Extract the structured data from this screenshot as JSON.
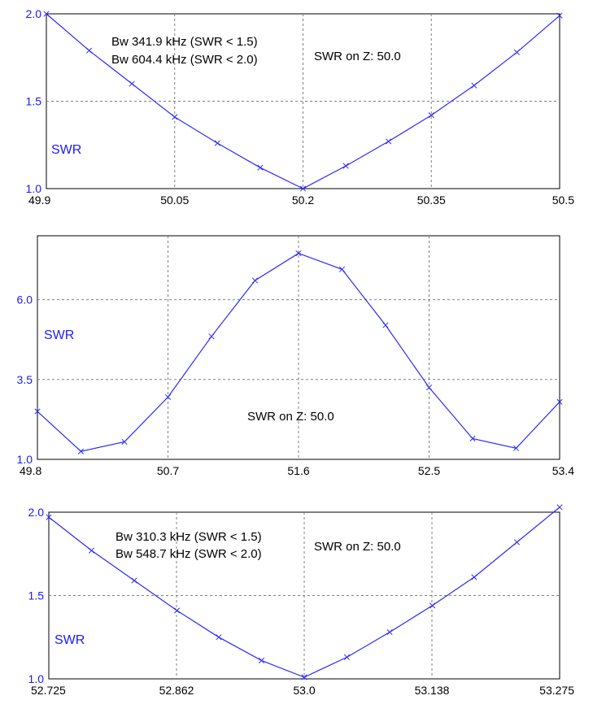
{
  "chart_data": [
    {
      "type": "line",
      "title": "",
      "xlabel": "",
      "ylabel": "",
      "xlim": [
        49.9,
        50.5
      ],
      "ylim": [
        1.0,
        2.0
      ],
      "x_ticks": [
        "49.9",
        "50.05",
        "50.2",
        "50.35",
        "50.5"
      ],
      "y_ticks": [
        "1.0",
        "1.5",
        "2.0"
      ],
      "grid": true,
      "series": [
        {
          "name": "SWR",
          "x": [
            49.9,
            49.95,
            50.0,
            50.05,
            50.1,
            50.15,
            50.2,
            50.25,
            50.3,
            50.35,
            50.4,
            50.45,
            50.5
          ],
          "values": [
            2.0,
            1.79,
            1.6,
            1.41,
            1.26,
            1.12,
            1.0,
            1.13,
            1.27,
            1.42,
            1.59,
            1.78,
            1.99
          ]
        }
      ],
      "annotations": [
        "Bw 341.9 kHz (SWR < 1.5)",
        "Bw 604.4 kHz (SWR < 2.0)",
        "SWR on Z: 50.0"
      ],
      "series_label": "SWR"
    },
    {
      "type": "line",
      "title": "",
      "xlabel": "",
      "ylabel": "",
      "xlim": [
        49.8,
        53.4
      ],
      "ylim": [
        1.0,
        8.0
      ],
      "x_ticks": [
        "49.8",
        "50.7",
        "51.6",
        "52.5",
        "53.4"
      ],
      "y_ticks": [
        "1.0",
        "3.5",
        "6.0"
      ],
      "grid": true,
      "series": [
        {
          "name": "SWR",
          "x": [
            49.8,
            50.1,
            50.4,
            50.7,
            51.0,
            51.3,
            51.6,
            51.9,
            52.2,
            52.5,
            52.8,
            53.1,
            53.4
          ],
          "values": [
            2.5,
            1.25,
            1.55,
            2.95,
            4.85,
            6.6,
            7.45,
            6.95,
            5.2,
            3.25,
            1.65,
            1.35,
            2.8
          ]
        }
      ],
      "annotations": [
        "SWR on Z: 50.0"
      ],
      "series_label": "SWR"
    },
    {
      "type": "line",
      "title": "",
      "xlabel": "",
      "ylabel": "",
      "xlim": [
        52.725,
        53.275
      ],
      "ylim": [
        1.0,
        2.0
      ],
      "x_ticks": [
        "52.725",
        "52.862",
        "53.0",
        "53.138",
        "53.275"
      ],
      "y_ticks": [
        "1.0",
        "1.5",
        "2.0"
      ],
      "grid": true,
      "series": [
        {
          "name": "SWR",
          "x": [
            52.725,
            52.771,
            52.817,
            52.863,
            52.908,
            52.954,
            53.0,
            53.046,
            53.092,
            53.138,
            53.183,
            53.229,
            53.275
          ],
          "values": [
            1.97,
            1.77,
            1.59,
            1.41,
            1.25,
            1.11,
            1.01,
            1.13,
            1.28,
            1.44,
            1.61,
            1.82,
            2.03
          ]
        }
      ],
      "annotations": [
        "Bw 310.3 kHz (SWR < 1.5)",
        "Bw 548.7 kHz (SWR < 2.0)",
        "SWR on Z: 50.0"
      ],
      "series_label": "SWR"
    }
  ]
}
